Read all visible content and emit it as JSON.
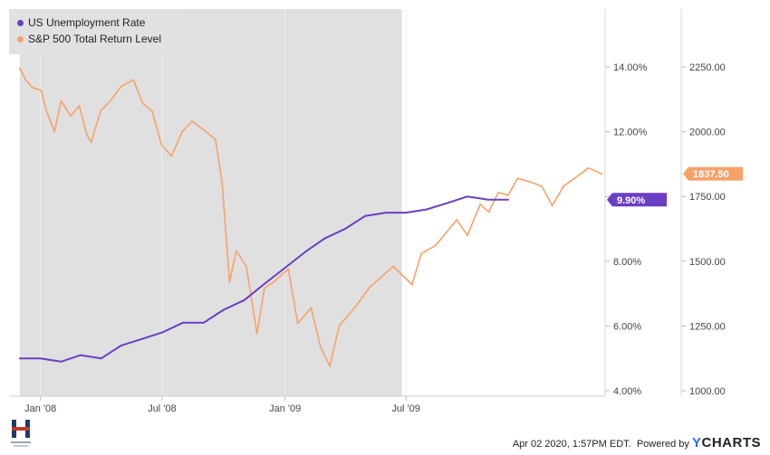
{
  "chart_data": {
    "type": "line",
    "x_ticks": [
      "Jan '08",
      "Jul '08",
      "Jan '09",
      "Jul '09"
    ],
    "y_axis_left": {
      "ticks": [
        "4.00%",
        "6.00%",
        "8.00%",
        "10.00%",
        "12.00%",
        "14.00%"
      ],
      "range": [
        4,
        14
      ]
    },
    "y_axis_right": {
      "ticks": [
        "1000.00",
        "1250.00",
        "1500.00",
        "1750.00",
        "2000.00",
        "2250.00"
      ],
      "range": [
        1000,
        2250
      ]
    },
    "recession_shading": {
      "start": "2007-12",
      "end": "2009-06"
    },
    "series": [
      {
        "name": "US Unemployment Rate",
        "color": "#6a3fc4",
        "axis": "left",
        "last_value_label": "9.90%",
        "points": [
          [
            "2007-12-01",
            5.0
          ],
          [
            "2008-01-01",
            5.0
          ],
          [
            "2008-02-01",
            4.9
          ],
          [
            "2008-03-01",
            5.1
          ],
          [
            "2008-04-01",
            5.0
          ],
          [
            "2008-05-01",
            5.4
          ],
          [
            "2008-06-01",
            5.6
          ],
          [
            "2008-07-01",
            5.8
          ],
          [
            "2008-08-01",
            6.1
          ],
          [
            "2008-09-01",
            6.1
          ],
          [
            "2008-10-01",
            6.5
          ],
          [
            "2008-11-01",
            6.8
          ],
          [
            "2008-12-01",
            7.3
          ],
          [
            "2009-01-01",
            7.8
          ],
          [
            "2009-02-01",
            8.3
          ],
          [
            "2009-03-01",
            8.7
          ],
          [
            "2009-04-01",
            9.0
          ],
          [
            "2009-05-01",
            9.4
          ],
          [
            "2009-06-01",
            9.5
          ],
          [
            "2009-07-01",
            9.5
          ],
          [
            "2009-08-01",
            9.6
          ],
          [
            "2009-09-01",
            9.8
          ],
          [
            "2009-10-01",
            10.0
          ],
          [
            "2009-11-01",
            9.9
          ],
          [
            "2009-12-01",
            9.9
          ]
        ]
      },
      {
        "name": "S&P 500 Total Return Level",
        "color": "#f5a36a",
        "axis": "right",
        "last_value_label": "1837.50",
        "points": [
          [
            "2007-12-01",
            2245
          ],
          [
            "2007-12-10",
            2200
          ],
          [
            "2007-12-20",
            2170
          ],
          [
            "2008-01-02",
            2160
          ],
          [
            "2008-01-10",
            2080
          ],
          [
            "2008-01-22",
            2000
          ],
          [
            "2008-02-01",
            2120
          ],
          [
            "2008-02-15",
            2060
          ],
          [
            "2008-02-28",
            2100
          ],
          [
            "2008-03-10",
            1990
          ],
          [
            "2008-03-17",
            1960
          ],
          [
            "2008-03-31",
            2080
          ],
          [
            "2008-04-15",
            2120
          ],
          [
            "2008-05-01",
            2175
          ],
          [
            "2008-05-19",
            2200
          ],
          [
            "2008-06-02",
            2110
          ],
          [
            "2008-06-16",
            2080
          ],
          [
            "2008-06-30",
            1950
          ],
          [
            "2008-07-15",
            1905
          ],
          [
            "2008-07-31",
            2000
          ],
          [
            "2008-08-15",
            2040
          ],
          [
            "2008-09-05",
            2000
          ],
          [
            "2008-09-19",
            1970
          ],
          [
            "2008-09-29",
            1800
          ],
          [
            "2008-10-10",
            1420
          ],
          [
            "2008-10-20",
            1540
          ],
          [
            "2008-11-04",
            1480
          ],
          [
            "2008-11-20",
            1220
          ],
          [
            "2008-12-01",
            1395
          ],
          [
            "2008-12-15",
            1420
          ],
          [
            "2009-01-06",
            1470
          ],
          [
            "2009-01-20",
            1260
          ],
          [
            "2009-02-09",
            1320
          ],
          [
            "2009-02-23",
            1170
          ],
          [
            "2009-03-09",
            1095
          ],
          [
            "2009-03-23",
            1250
          ],
          [
            "2009-04-15",
            1320
          ],
          [
            "2009-05-08",
            1400
          ],
          [
            "2009-06-01",
            1455
          ],
          [
            "2009-06-12",
            1480
          ],
          [
            "2009-07-10",
            1410
          ],
          [
            "2009-07-24",
            1530
          ],
          [
            "2009-08-14",
            1560
          ],
          [
            "2009-09-15",
            1660
          ],
          [
            "2009-10-01",
            1600
          ],
          [
            "2009-10-20",
            1720
          ],
          [
            "2009-11-02",
            1690
          ],
          [
            "2009-11-16",
            1765
          ],
          [
            "2009-12-01",
            1755
          ],
          [
            "2009-12-15",
            1820
          ],
          [
            "2010-01-04",
            1805
          ],
          [
            "2010-01-20",
            1790
          ],
          [
            "2010-02-05",
            1715
          ],
          [
            "2010-02-22",
            1790
          ],
          [
            "2010-03-10",
            1820
          ],
          [
            "2010-03-31",
            1860
          ],
          [
            "2010-04-20",
            1837.5
          ]
        ]
      }
    ]
  },
  "footer": {
    "timestamp": "Apr 02 2020, 1:57PM EDT.",
    "powered_by": "Powered by",
    "brand_y": "Y",
    "brand_rest": "CHARTS"
  }
}
